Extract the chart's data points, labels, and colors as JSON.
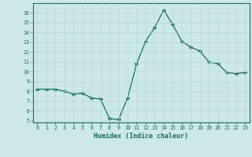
{
  "x": [
    0,
    1,
    2,
    3,
    4,
    5,
    6,
    7,
    8,
    9,
    10,
    11,
    12,
    13,
    14,
    15,
    16,
    17,
    18,
    19,
    20,
    21,
    22,
    23
  ],
  "y": [
    8.2,
    8.2,
    8.2,
    8.0,
    7.7,
    7.8,
    7.3,
    7.2,
    5.2,
    5.1,
    7.3,
    10.8,
    13.1,
    14.5,
    16.3,
    14.8,
    13.1,
    12.5,
    12.1,
    11.0,
    10.8,
    9.9,
    9.8,
    9.9
  ],
  "xlabel": "Humidex (Indice chaleur)",
  "ylim": [
    4.8,
    17.0
  ],
  "xlim": [
    -0.5,
    23.5
  ],
  "yticks": [
    5,
    6,
    7,
    8,
    9,
    10,
    11,
    12,
    13,
    14,
    15,
    16
  ],
  "xticks": [
    0,
    1,
    2,
    3,
    4,
    5,
    6,
    7,
    8,
    9,
    10,
    11,
    12,
    13,
    14,
    15,
    16,
    17,
    18,
    19,
    20,
    21,
    22,
    23
  ],
  "line_color": "#1a6b5a",
  "marker_color": "#1a6b5a",
  "bg_color": "#cce8e8",
  "grid_color": "#b8d8d8",
  "axis_color": "#1a6b5a",
  "label_color": "#1a6b5a",
  "tick_label_color": "#1a6b5a"
}
